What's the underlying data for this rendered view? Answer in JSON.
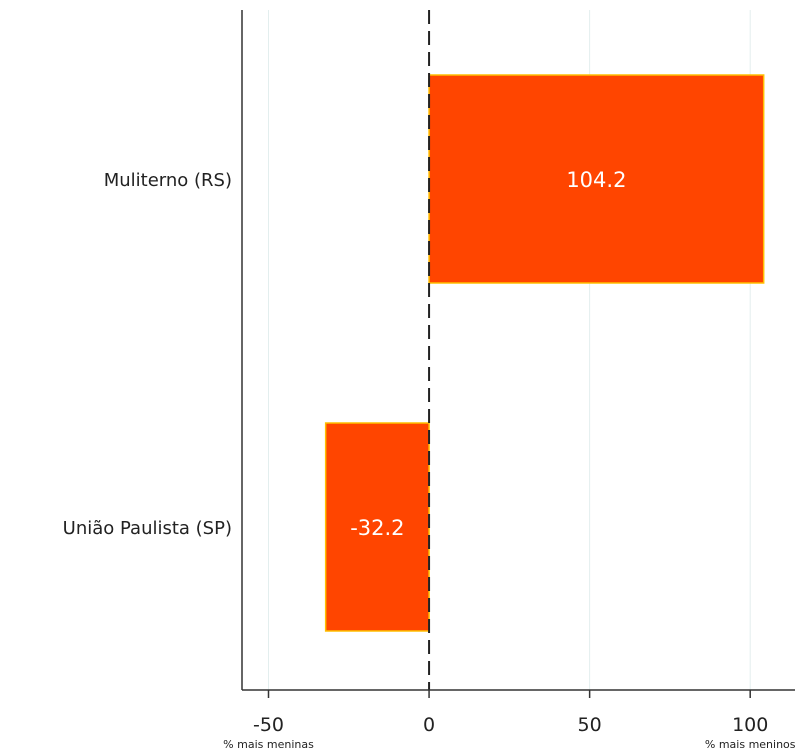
{
  "chart_data": {
    "type": "bar",
    "orientation": "horizontal",
    "categories": [
      "Muliterno (RS)",
      "União Paulista (SP)"
    ],
    "values": [
      104.2,
      -32.2
    ],
    "value_labels": [
      "104.2",
      "-32.2"
    ],
    "xlim": [
      -54,
      112
    ],
    "xticks": [
      -50,
      0,
      50,
      100
    ],
    "xtick_labels": [
      "-50",
      "0",
      "50",
      "100"
    ],
    "tick_notes": [
      {
        "at": -50,
        "text": "% mais meninas"
      },
      {
        "at": 100,
        "text": "% mais meninos"
      }
    ],
    "grid": true,
    "reference_line": 0,
    "colors": {
      "bar": "#ff4500",
      "bar_outline": "#ffbf00",
      "grid": "#e3eeee",
      "axis": "#333333",
      "text": "#222222",
      "value_label": "#ffffff"
    }
  }
}
